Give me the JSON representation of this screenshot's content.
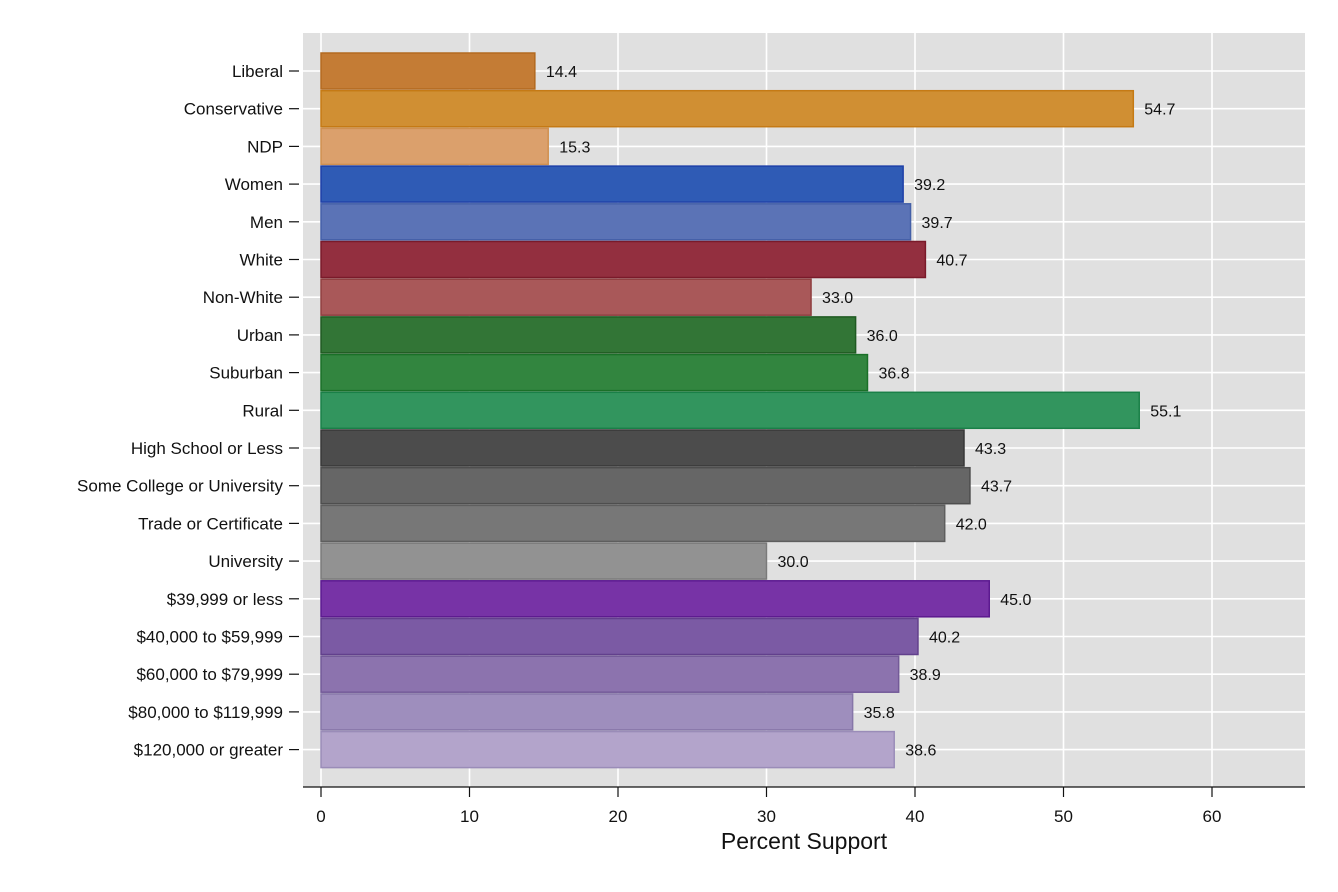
{
  "chart_data": {
    "type": "bar",
    "orientation": "horizontal",
    "xlabel": "Percent Support",
    "ylabel": "",
    "xlim": [
      -1.2,
      66
    ],
    "xticks": [
      0,
      10,
      20,
      30,
      40,
      50,
      60
    ],
    "grid": true,
    "legend": "none",
    "categories": [
      "Liberal",
      "Conservative",
      "NDP",
      "Women",
      "Men",
      "White",
      "Non-White",
      "Urban",
      "Suburban",
      "Rural",
      "High School or Less",
      "Some College or University",
      "Trade or Certificate",
      "University",
      "$39,999 or less",
      "$40,000 to $59,999",
      "$60,000 to $79,999",
      "$80,000 to $119,999",
      "$120,000 or greater"
    ],
    "values": [
      14.4,
      54.7,
      15.3,
      39.2,
      39.7,
      40.7,
      33.0,
      36.0,
      36.8,
      55.1,
      43.3,
      43.7,
      42.0,
      30.0,
      45.0,
      40.2,
      38.9,
      35.8,
      38.6
    ],
    "value_labels": [
      "14.4",
      "54.7",
      "15.3",
      "39.2",
      "39.7",
      "40.7",
      "33.0",
      "36.0",
      "36.8",
      "55.1",
      "43.3",
      "43.7",
      "42.0",
      "30.0",
      "45.0",
      "40.2",
      "38.9",
      "35.8",
      "38.6"
    ],
    "fill_colors": [
      "#c47c35",
      "#d08f33",
      "#dba06c",
      "#2f5bb5",
      "#5b73b6",
      "#932f3f",
      "#a95859",
      "#327536",
      "#32853f",
      "#32955e",
      "#4c4c4c",
      "#666666",
      "#777777",
      "#929292",
      "#7733a6",
      "#7b5aa4",
      "#8c73ae",
      "#9e8ebd",
      "#b3a4cb"
    ],
    "stroke_colors": [
      "#b36a20",
      "#c57a15",
      "#d09050",
      "#1e40a8",
      "#4460a8",
      "#7a1a2a",
      "#8f3f40",
      "#1f5a22",
      "#1a7028",
      "#1a8048",
      "#383838",
      "#4e4e4e",
      "#5e5e5e",
      "#7a7a7a",
      "#5c1a90",
      "#62408c",
      "#735a98",
      "#8676a8",
      "#9a8cb8"
    ],
    "background_color": "#e0e0e0",
    "grid_color": "#ffffff"
  }
}
